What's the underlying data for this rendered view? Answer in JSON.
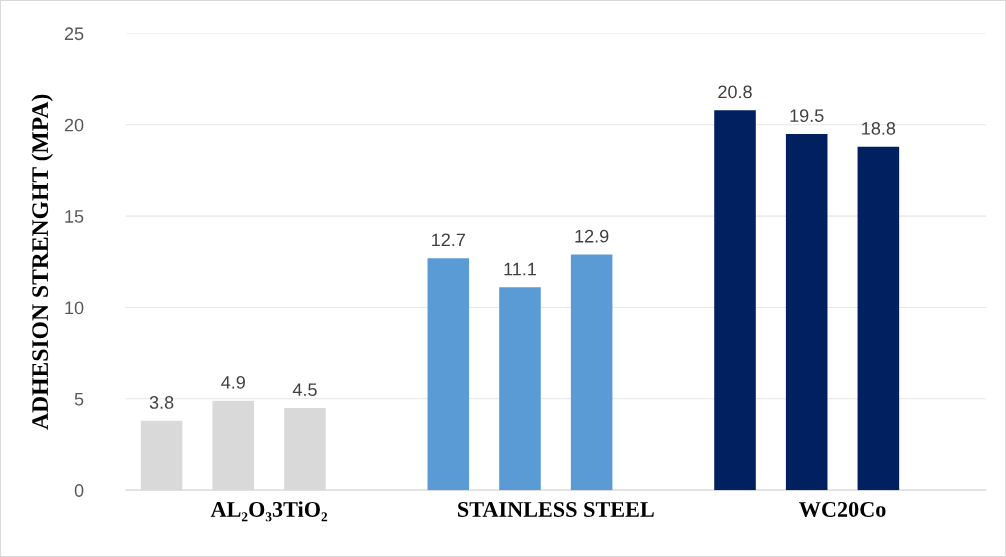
{
  "chart_data": {
    "type": "bar",
    "ylabel": "ADHESION STRENGHT (MPA)",
    "categories": [
      "AL₂O₃3TiO₂",
      "STAINLESS STEEL",
      "WC20Co"
    ],
    "series": [
      {
        "colors": [
          "#d9d9d9",
          "#5b9bd5",
          "#002060"
        ],
        "values": [
          3.8,
          12.7,
          20.8
        ]
      },
      {
        "colors": [
          "#d9d9d9",
          "#5b9bd5",
          "#002060"
        ],
        "values": [
          4.9,
          11.1,
          19.5
        ]
      },
      {
        "colors": [
          "#d9d9d9",
          "#5b9bd5",
          "#002060"
        ],
        "values": [
          4.5,
          12.9,
          18.8
        ]
      },
      {
        "values": [
          null,
          null,
          null
        ]
      }
    ],
    "ylim": [
      0,
      25
    ],
    "yticks": [
      0,
      5,
      10,
      15,
      20,
      25
    ],
    "grid": "y",
    "data_labels": true
  }
}
